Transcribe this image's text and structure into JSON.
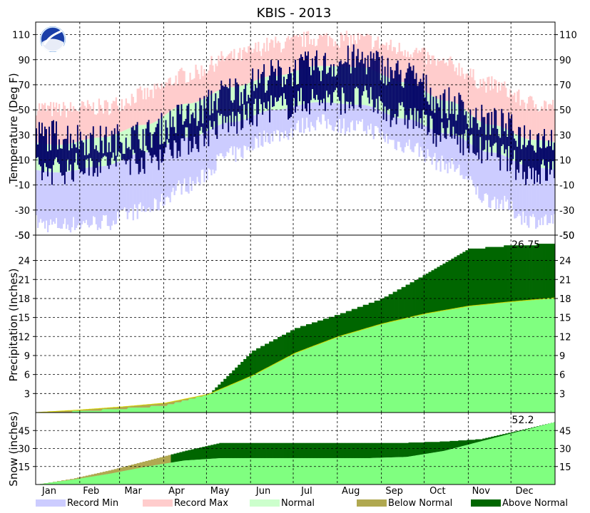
{
  "chart_data": {
    "type": "area",
    "title": "KBIS - 2013",
    "months": [
      "Jan",
      "Feb",
      "Mar",
      "Apr",
      "May",
      "Jun",
      "Jul",
      "Aug",
      "Sep",
      "Oct",
      "Nov",
      "Dec"
    ],
    "legend": [
      {
        "label": "Record Min",
        "color": "#ccccff"
      },
      {
        "label": "Record Max",
        "color": "#ffcccc"
      },
      {
        "label": "Normal",
        "color": "#ccffcc"
      },
      {
        "label": "Below Normal",
        "color": "#b0a850"
      },
      {
        "label": "Above Normal",
        "color": "#006600"
      }
    ],
    "panels": [
      {
        "name": "temperature",
        "ylabel": "Temperature (Deg F)",
        "ylim": [
          -50,
          120
        ],
        "ticks": [
          110,
          90,
          70,
          50,
          30,
          10,
          -10,
          -30,
          -50
        ],
        "tick_labels": [
          "110",
          "90",
          "70",
          "50",
          "30",
          "10",
          "-10",
          "-30",
          "-50"
        ],
        "monthly": {
          "record_max": [
            50,
            52,
            62,
            78,
            92,
            102,
            107,
            106,
            98,
            86,
            70,
            55
          ],
          "record_min": [
            -42,
            -40,
            -30,
            -10,
            14,
            30,
            40,
            36,
            22,
            6,
            -22,
            -38
          ],
          "normal_high": [
            22,
            28,
            38,
            55,
            68,
            77,
            85,
            84,
            72,
            57,
            38,
            26
          ],
          "normal_low": [
            0,
            5,
            16,
            28,
            40,
            50,
            56,
            54,
            43,
            31,
            16,
            4
          ],
          "observed_high": [
            30,
            25,
            30,
            45,
            65,
            78,
            85,
            90,
            78,
            55,
            40,
            28
          ],
          "observed_low": [
            2,
            8,
            10,
            25,
            40,
            52,
            58,
            58,
            45,
            30,
            15,
            0
          ]
        }
      },
      {
        "name": "precipitation",
        "ylabel": "Precipitation (Inches)",
        "ylim": [
          0,
          28
        ],
        "ticks": [
          24,
          21,
          18,
          15,
          12,
          9,
          6,
          3
        ],
        "tick_labels": [
          "24",
          "21",
          "18",
          "15",
          "12",
          "9",
          "6",
          "3"
        ],
        "annotation": "26.75",
        "monthly_normal": [
          0,
          0.4,
          0.9,
          1.5,
          2.9,
          5.8,
          9.4,
          12.0,
          14.0,
          15.6,
          16.8,
          17.5,
          18.1
        ],
        "monthly_observed": [
          0,
          0.3,
          0.7,
          1.2,
          3.0,
          9.8,
          13.4,
          15.6,
          18.1,
          21.9,
          25.9,
          26.5,
          26.75
        ]
      },
      {
        "name": "snow",
        "ylabel": "Snow (inches)",
        "ylim": [
          0,
          60
        ],
        "ticks": [
          45,
          30,
          15
        ],
        "tick_labels": [
          "45",
          "30",
          "15"
        ],
        "annotation": "52.2",
        "monthly_normal": [
          0,
          4,
          9,
          15,
          20,
          22,
          22,
          22,
          22,
          22,
          23,
          28,
          36,
          44,
          52
        ],
        "monthly_observed": [
          0,
          5,
          12,
          20,
          28,
          35,
          35,
          35,
          35,
          35,
          35,
          36,
          38,
          45,
          52.2
        ]
      }
    ]
  }
}
